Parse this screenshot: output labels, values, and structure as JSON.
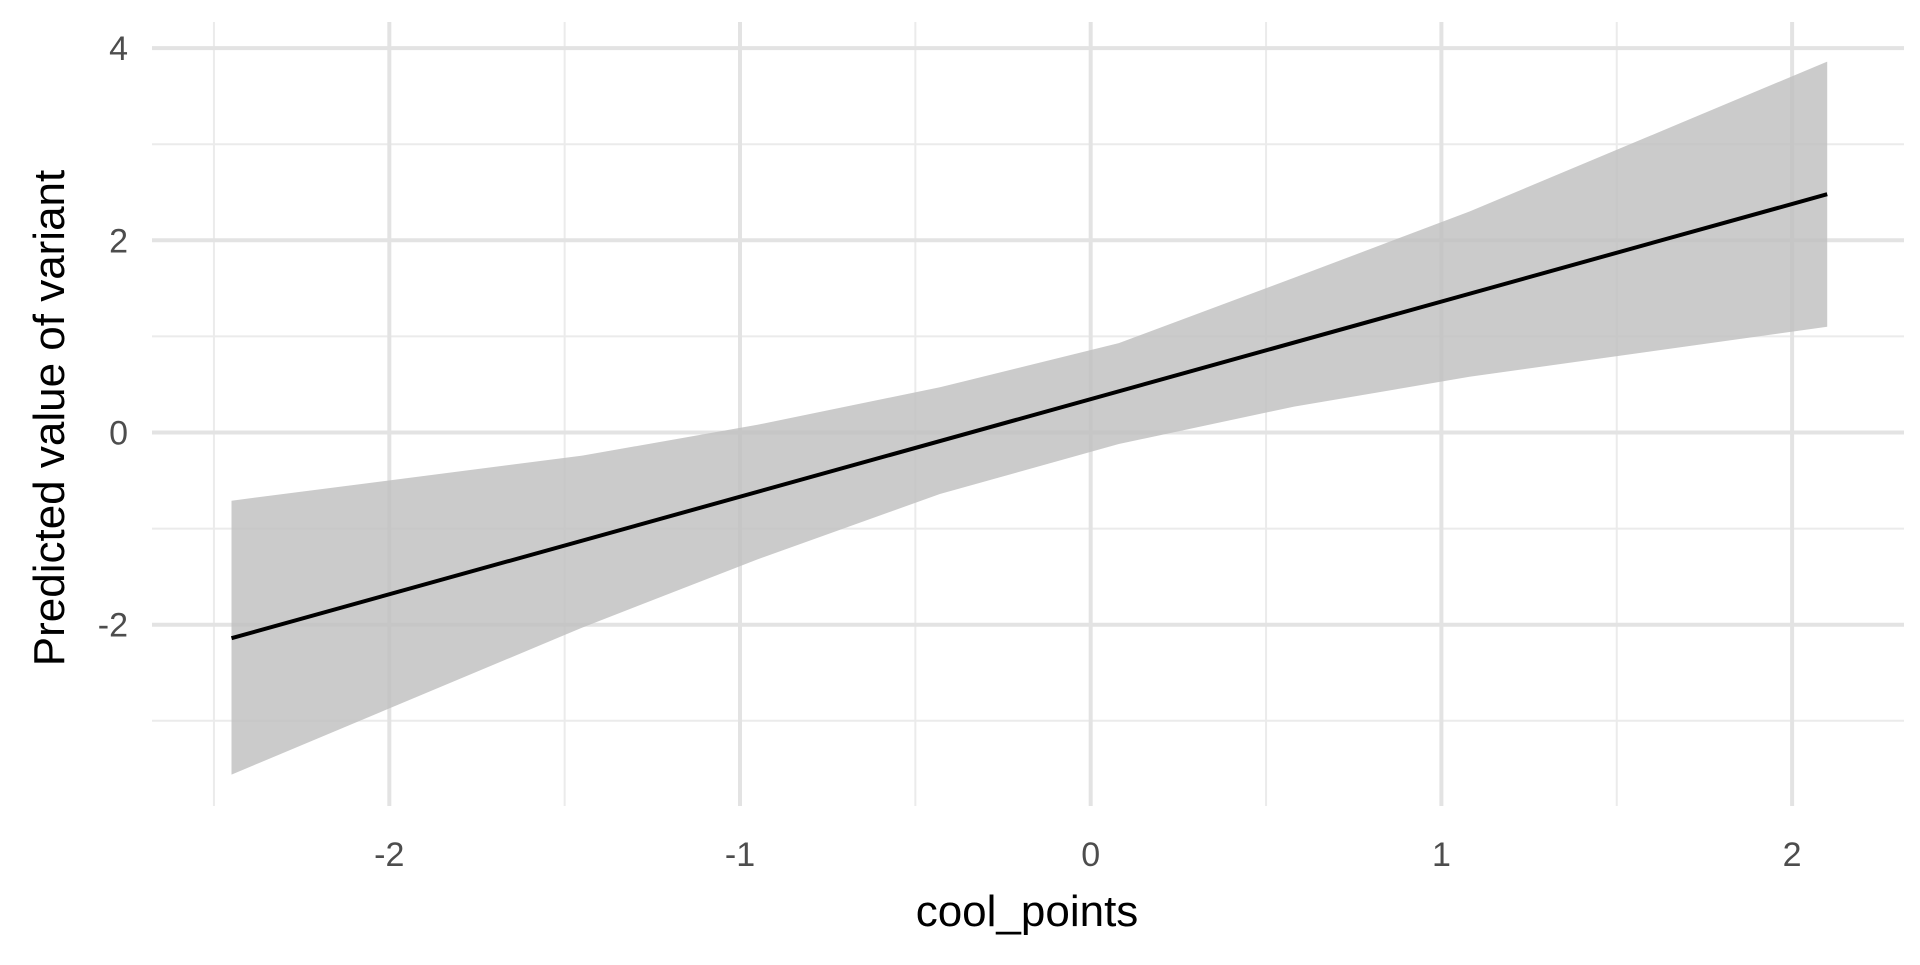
{
  "chart_data": {
    "type": "line",
    "title": "",
    "xlabel": "cool_points",
    "ylabel": "Predicted value of variant",
    "xlim": [
      -2.5,
      2.3
    ],
    "ylim": [
      -3.9,
      4.2
    ],
    "x_ticks": [
      -2,
      -1,
      0,
      1,
      2
    ],
    "x_tick_labels": [
      "-2",
      "-1",
      "0",
      "1",
      "2"
    ],
    "y_ticks": [
      -2,
      0,
      2,
      4
    ],
    "y_tick_labels": [
      "-2",
      "0",
      "2",
      "4"
    ],
    "x_minor_ticks": [
      -2.5,
      -1.5,
      -0.5,
      0.5,
      1.5
    ],
    "y_minor_ticks": [
      -3,
      -1,
      1,
      3
    ],
    "grid": true,
    "legend": "none",
    "series": [
      {
        "type": "line",
        "color": "#000000",
        "points": [
          {
            "x": -2.45,
            "y": -2.14
          },
          {
            "x": 2.1,
            "y": 2.48
          }
        ]
      },
      {
        "type": "ribbon",
        "color": "#bfbfbf",
        "points": [
          {
            "x": -2.45,
            "lower": -3.56,
            "upper": -0.71
          },
          {
            "x": -1.45,
            "lower": -2.03,
            "upper": -0.24
          },
          {
            "x": -0.95,
            "lower": -1.32,
            "upper": 0.08
          },
          {
            "x": -0.43,
            "lower": -0.64,
            "upper": 0.47
          },
          {
            "x": 0.08,
            "lower": -0.12,
            "upper": 0.93
          },
          {
            "x": 0.58,
            "lower": 0.27,
            "upper": 1.61
          },
          {
            "x": 1.08,
            "lower": 0.58,
            "upper": 2.3
          },
          {
            "x": 2.1,
            "lower": 1.1,
            "upper": 3.86
          }
        ]
      }
    ]
  }
}
